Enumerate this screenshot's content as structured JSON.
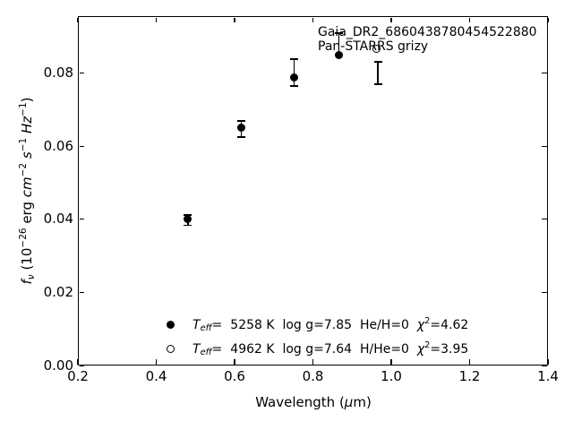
{
  "figure": {
    "background": "#ffffff",
    "foreground": "#000000"
  },
  "annotations": {
    "line1": "Gaia_DR2_6860438780454522880",
    "line2": "Pan-STARRS grizy"
  },
  "x_axis": {
    "label_prefix": "Wavelength (",
    "label_mu": "μ",
    "label_suffix": "m)"
  },
  "y_axis": {
    "label_parts": {
      "sym": "f",
      "sym_sub": "ν",
      "p1": " (10",
      "e1": "−26",
      "p2": " erg ",
      "u1": "cm",
      "e2": "−2",
      "p3": " ",
      "u2": "s",
      "e3": "−1",
      "p4": " ",
      "u3": "Hz",
      "e4": "−1",
      "p5": ")"
    }
  },
  "fit_legend": {
    "rows": [
      {
        "marker": "filled",
        "t": "T",
        "t_sub": "eff",
        "mid": "=  5258 K  log g=7.85  He/H=0  ",
        "chi": "χ",
        "chi_sup": "2",
        "chi_eq": "=4.62"
      },
      {
        "marker": "open",
        "t": "T",
        "t_sub": "eff",
        "mid": "=  4962 K  log g=7.64  H/He=0  ",
        "chi": "χ",
        "chi_sup": "2",
        "chi_eq": "=3.95"
      }
    ]
  },
  "chart_data": {
    "type": "scatter",
    "title": "",
    "xlabel": "Wavelength (μm)",
    "ylabel": "f_ν (10⁻²⁶ erg cm⁻² s⁻¹ Hz⁻¹)",
    "xlim": [
      0.2,
      1.4
    ],
    "ylim": [
      0,
      0.0956
    ],
    "grid": false,
    "x_ticks": [
      0.2,
      0.4,
      0.6,
      0.8,
      1.0,
      1.2,
      1.4
    ],
    "x_tick_labels": [
      "0.2",
      "0.4",
      "0.6",
      "0.8",
      "1.0",
      "1.2",
      "1.4"
    ],
    "y_ticks": [
      0.0,
      0.02,
      0.04,
      0.06,
      0.08
    ],
    "y_tick_labels": [
      "0.00",
      "0.02",
      "0.04",
      "0.06",
      "0.08"
    ],
    "series": [
      {
        "name": "Teff= 5258 K  log g=7.85  He/H=0  chi2=4.62",
        "marker": "filled-circle",
        "points": [
          {
            "x": 0.481,
            "y": 0.04
          },
          {
            "x": 0.617,
            "y": 0.065
          },
          {
            "x": 0.752,
            "y": 0.0788
          },
          {
            "x": 0.866,
            "y": 0.085
          }
        ]
      },
      {
        "name": "Teff= 4962 K  log g=7.64  H/He=0  chi2=3.95",
        "marker": "open-circle",
        "points": [
          {
            "x": 0.962,
            "y": 0.0866
          }
        ]
      }
    ],
    "error_bars": [
      {
        "x": 0.481,
        "y_low": 0.0384,
        "y_high": 0.0412,
        "caps": "both"
      },
      {
        "x": 0.617,
        "y_low": 0.0625,
        "y_high": 0.0669,
        "caps": "both"
      },
      {
        "x": 0.752,
        "y_low": 0.0765,
        "y_high": 0.0838,
        "caps": "both"
      },
      {
        "x": 0.866,
        "y_low": 0.085,
        "y_high": 0.091,
        "caps": "top"
      },
      {
        "x": 0.966,
        "y_low": 0.077,
        "y_high": 0.0831,
        "caps": "both"
      }
    ]
  }
}
